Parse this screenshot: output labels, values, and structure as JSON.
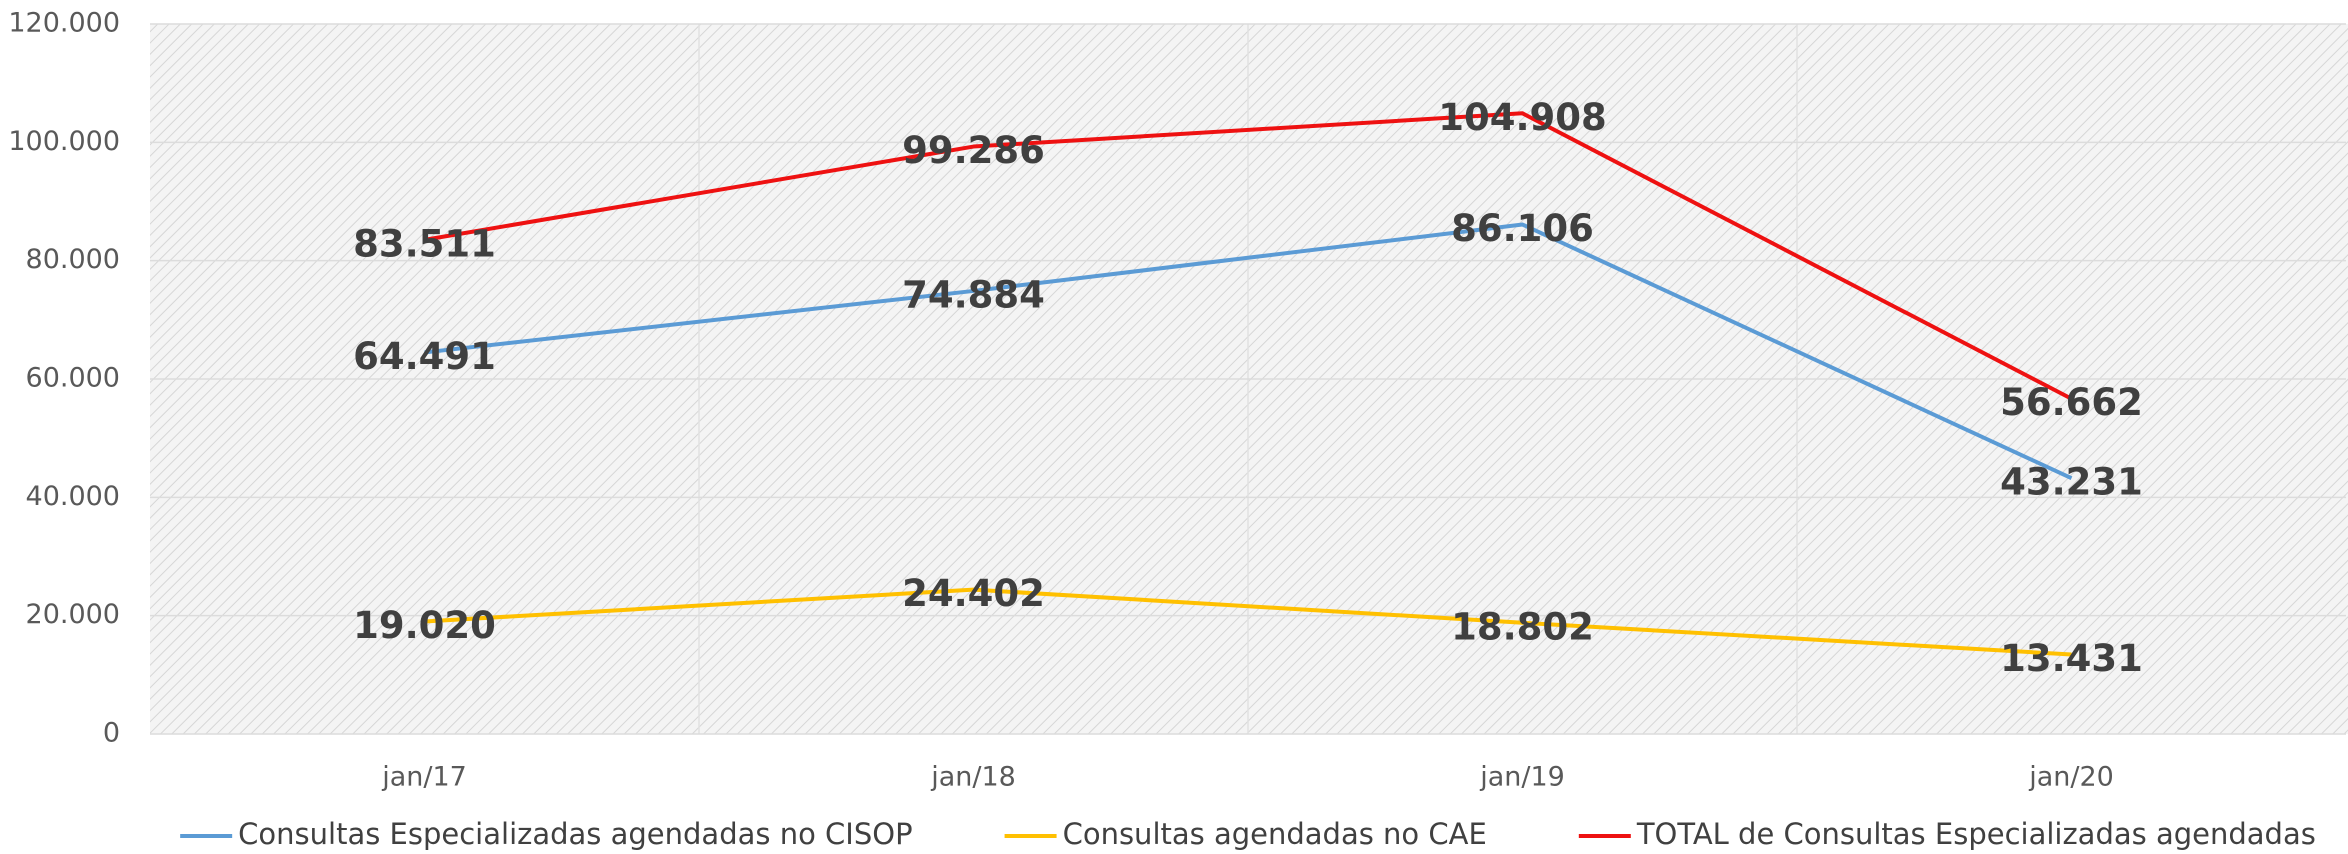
{
  "chart_data": {
    "type": "line",
    "categories": [
      "jan/17",
      "jan/18",
      "jan/19",
      "jan/20"
    ],
    "series": [
      {
        "name": "Consultas Especializadas agendadas no CISOP",
        "color": "#5b9bd5",
        "values": [
          64491,
          74884,
          86106,
          43231
        ],
        "value_labels": [
          "64.491",
          "74.884",
          "86.106",
          "43.231"
        ]
      },
      {
        "name": "Consultas agendadas no CAE",
        "color": "#ffc000",
        "values": [
          19020,
          24402,
          18802,
          13431
        ],
        "value_labels": [
          "19.020",
          "24.402",
          "18.802",
          "13.431"
        ]
      },
      {
        "name": "TOTAL de Consultas Especializadas agendadas",
        "color": "#ee1111",
        "values": [
          83511,
          99286,
          104908,
          56662
        ],
        "value_labels": [
          "83.511",
          "99.286",
          "104.908",
          "56.662"
        ]
      }
    ],
    "ylim": [
      0,
      120000
    ],
    "yticks": [
      0,
      {
        "value": 20000,
        "label": "20.000"
      },
      {
        "value": 40000,
        "label": "40.000"
      },
      {
        "value": 60000,
        "label": "60.000"
      },
      {
        "value": 80000,
        "label": "80.000"
      },
      {
        "value": 100000,
        "label": "100.000"
      },
      {
        "value": 120000,
        "label": "120.000"
      }
    ],
    "grid": true,
    "legend": "bottom"
  }
}
